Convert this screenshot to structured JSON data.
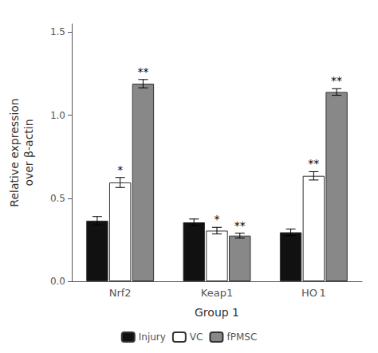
{
  "chart_data": {
    "type": "bar",
    "categories": [
      "Nrf2",
      "Keap1",
      "HO 1"
    ],
    "series": [
      {
        "name": "Injury",
        "color": "#111111",
        "values": [
          0.365,
          0.355,
          0.295
        ],
        "errors": [
          0.025,
          0.02,
          0.02
        ],
        "significance": [
          null,
          null,
          null
        ]
      },
      {
        "name": "VC",
        "color": "#ffffff",
        "values": [
          0.595,
          0.305,
          0.635
        ],
        "errors": [
          0.03,
          0.02,
          0.025
        ],
        "significance": [
          "*",
          "*",
          "**"
        ]
      },
      {
        "name": "fPMSC",
        "color": "#888888",
        "values": [
          1.19,
          0.275,
          1.14
        ],
        "errors": [
          0.025,
          0.015,
          0.02
        ],
        "significance": [
          "**",
          "**",
          "**"
        ]
      }
    ],
    "xlabel": "Group 1",
    "ylabel": "Relative expression\nover β-actin",
    "ylim": [
      0.0,
      1.55
    ],
    "yticks": [
      {
        "value": 0.0,
        "label": "0.0"
      },
      0.5,
      {
        "value": 1.0,
        "label": "1.0"
      },
      1.5
    ],
    "grid": false,
    "legend": "bottom"
  }
}
